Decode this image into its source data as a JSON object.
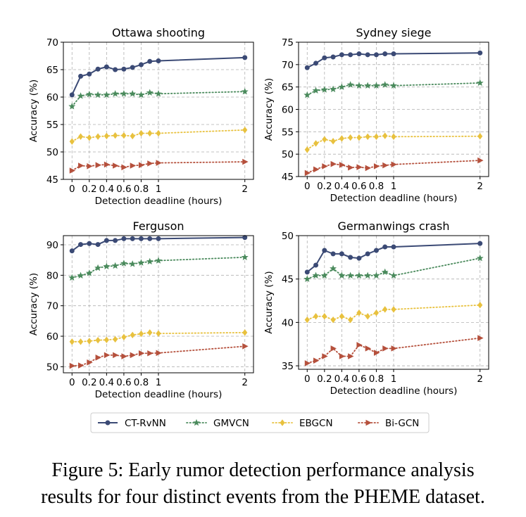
{
  "caption": {
    "line1": "Figure 5: Early rumor detection performance analysis",
    "line2": "results for four distinct events from the PHEME dataset."
  },
  "legend": {
    "placement": "bottom-center",
    "entries": [
      {
        "label": "CT-RvNN",
        "color": "#3b4a75",
        "marker": "circle",
        "dash": "solid"
      },
      {
        "label": "GMVCN",
        "color": "#4a8a5c",
        "marker": "star",
        "dash": "dotted"
      },
      {
        "label": "EBGCN",
        "color": "#e8c13e",
        "marker": "diamond",
        "dash": "dotted"
      },
      {
        "label": "Bi-GCN",
        "color": "#b5503c",
        "marker": "triangle",
        "dash": "dotted"
      }
    ]
  },
  "chart_data": [
    {
      "type": "line",
      "title": "Ottawa shooting",
      "xlabel": "Detection deadline (hours)",
      "ylabel": "Accuracy (%)",
      "xlim": [
        -0.1,
        2.1
      ],
      "ylim": [
        45,
        70
      ],
      "xticks": [
        0,
        0.2,
        0.4,
        0.6,
        0.8,
        1,
        2
      ],
      "xtick_labels": [
        "0",
        "0.2",
        "0.4",
        "0.6",
        "0.8",
        "1",
        "2"
      ],
      "yticks": [
        45,
        50,
        55,
        60,
        65,
        70
      ],
      "grid": true,
      "x": [
        0,
        0.1,
        0.2,
        0.3,
        0.4,
        0.5,
        0.6,
        0.7,
        0.8,
        0.9,
        1,
        2
      ],
      "series": [
        {
          "name": "CT-RvNN",
          "values": [
            60.4,
            63.8,
            64.2,
            65.1,
            65.5,
            65.0,
            65.1,
            65.4,
            65.9,
            66.5,
            66.6,
            67.2
          ]
        },
        {
          "name": "GMVCN",
          "values": [
            58.3,
            60.2,
            60.5,
            60.4,
            60.4,
            60.6,
            60.6,
            60.6,
            60.4,
            60.8,
            60.6,
            61.0
          ]
        },
        {
          "name": "EBGCN",
          "values": [
            51.9,
            52.8,
            52.6,
            52.8,
            52.9,
            53.0,
            53.0,
            52.9,
            53.4,
            53.4,
            53.4,
            54.0
          ]
        },
        {
          "name": "Bi-GCN",
          "values": [
            46.6,
            47.5,
            47.4,
            47.6,
            47.7,
            47.5,
            47.2,
            47.5,
            47.6,
            47.9,
            48.0,
            48.2
          ]
        }
      ]
    },
    {
      "type": "line",
      "title": "Sydney siege",
      "xlabel": "Detection deadline (hours)",
      "ylabel": "Accuracy (%)",
      "xlim": [
        -0.1,
        2.1
      ],
      "ylim": [
        45,
        75
      ],
      "xticks": [
        0,
        0.2,
        0.4,
        0.6,
        0.8,
        1,
        2
      ],
      "xtick_labels": [
        "0",
        "0.2",
        "0.4",
        "0.6",
        "0.8",
        "1",
        "2"
      ],
      "yticks": [
        45,
        50,
        55,
        60,
        65,
        70,
        75
      ],
      "grid": true,
      "x": [
        0,
        0.1,
        0.2,
        0.3,
        0.4,
        0.5,
        0.6,
        0.7,
        0.8,
        0.9,
        1,
        2
      ],
      "series": [
        {
          "name": "CT-RvNN",
          "values": [
            69.3,
            70.3,
            71.5,
            71.7,
            72.2,
            72.2,
            72.4,
            72.2,
            72.2,
            72.4,
            72.4,
            72.6
          ]
        },
        {
          "name": "GMVCN",
          "values": [
            63.2,
            64.2,
            64.4,
            64.5,
            65.0,
            65.5,
            65.3,
            65.3,
            65.3,
            65.5,
            65.3,
            65.9
          ]
        },
        {
          "name": "EBGCN",
          "values": [
            51.0,
            52.4,
            53.3,
            52.9,
            53.5,
            53.7,
            53.7,
            53.9,
            53.9,
            54.1,
            53.9,
            54.0
          ]
        },
        {
          "name": "Bi-GCN",
          "values": [
            45.8,
            46.6,
            47.3,
            47.8,
            47.6,
            47.0,
            47.1,
            46.9,
            47.3,
            47.5,
            47.7,
            48.6
          ]
        }
      ]
    },
    {
      "type": "line",
      "title": "Ferguson",
      "xlabel": "Detection deadline (hours)",
      "ylabel": "Accuracy (%)",
      "xlim": [
        -0.1,
        2.1
      ],
      "ylim": [
        48,
        93
      ],
      "xticks": [
        0,
        0.2,
        0.4,
        0.6,
        0.8,
        1,
        2
      ],
      "xtick_labels": [
        "0",
        "0.2",
        "0.4",
        "0.6",
        "0.8",
        "1",
        "2"
      ],
      "yticks": [
        50,
        60,
        70,
        80,
        90
      ],
      "grid": true,
      "x": [
        0,
        0.1,
        0.2,
        0.3,
        0.4,
        0.5,
        0.6,
        0.7,
        0.8,
        0.9,
        1,
        2
      ],
      "series": [
        {
          "name": "CT-RvNN",
          "values": [
            88.0,
            90.1,
            90.4,
            90.1,
            91.4,
            91.4,
            92.0,
            92.0,
            92.0,
            92.0,
            92.0,
            92.4
          ]
        },
        {
          "name": "GMVCN",
          "values": [
            79.2,
            79.9,
            80.7,
            82.4,
            82.9,
            83.1,
            83.9,
            83.7,
            84.1,
            84.5,
            84.8,
            85.9
          ]
        },
        {
          "name": "EBGCN",
          "values": [
            58.2,
            58.2,
            58.4,
            58.7,
            58.8,
            59.0,
            59.7,
            60.4,
            60.8,
            61.2,
            60.9,
            61.2
          ]
        },
        {
          "name": "Bi-GCN",
          "values": [
            50.3,
            50.4,
            51.4,
            53.0,
            53.8,
            53.8,
            53.4,
            53.8,
            54.4,
            54.4,
            54.5,
            56.7
          ]
        }
      ]
    },
    {
      "type": "line",
      "title": "Germanwings crash",
      "xlabel": "Detection deadline (hours)",
      "ylabel": "Accuracy (%)",
      "xlim": [
        -0.1,
        2.1
      ],
      "ylim": [
        34.6,
        50
      ],
      "xticks": [
        0,
        0.2,
        0.4,
        0.6,
        0.8,
        1,
        2
      ],
      "xtick_labels": [
        "0",
        "0.2",
        "0.4",
        "0.6",
        "0.8",
        "1",
        "2"
      ],
      "yticks": [
        35,
        40,
        45,
        50
      ],
      "grid": true,
      "x": [
        0,
        0.1,
        0.2,
        0.3,
        0.4,
        0.5,
        0.6,
        0.7,
        0.8,
        0.9,
        1,
        2
      ],
      "series": [
        {
          "name": "CT-RvNN",
          "values": [
            45.8,
            46.6,
            48.3,
            47.9,
            47.9,
            47.5,
            47.4,
            47.9,
            48.3,
            48.7,
            48.7,
            49.1
          ]
        },
        {
          "name": "GMVCN",
          "values": [
            45.0,
            45.4,
            45.4,
            46.2,
            45.4,
            45.4,
            45.4,
            45.4,
            45.4,
            45.8,
            45.4,
            47.4
          ]
        },
        {
          "name": "EBGCN",
          "values": [
            40.3,
            40.7,
            40.7,
            40.3,
            40.7,
            40.3,
            41.1,
            40.7,
            41.1,
            41.5,
            41.5,
            42.0
          ]
        },
        {
          "name": "Bi-GCN",
          "values": [
            35.3,
            35.6,
            36.1,
            37.0,
            36.1,
            36.1,
            37.4,
            37.0,
            36.5,
            37.0,
            37.0,
            38.2
          ]
        }
      ]
    }
  ]
}
